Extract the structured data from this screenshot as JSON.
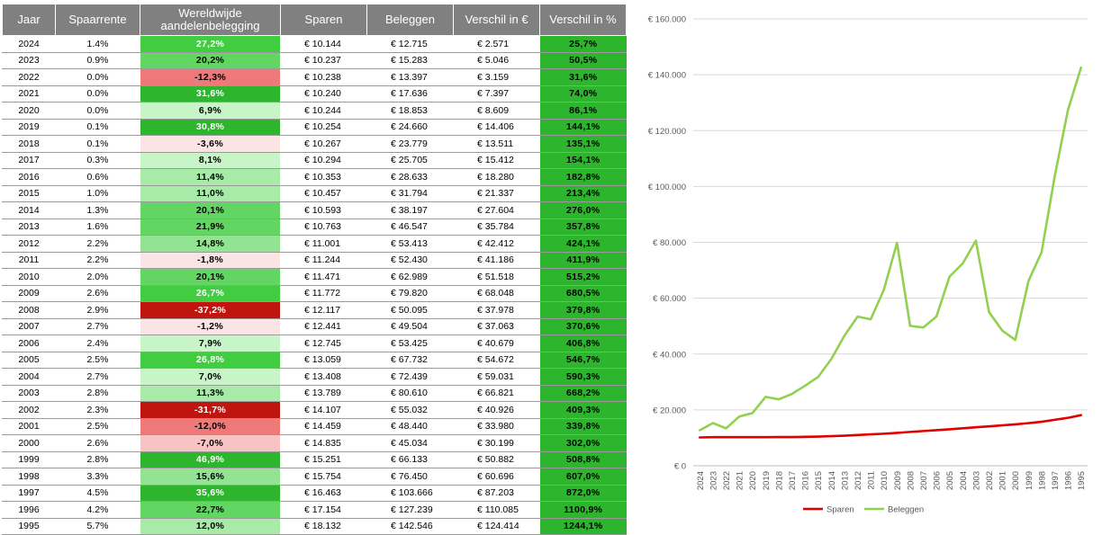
{
  "table": {
    "headers": [
      "Jaar",
      "Spaarrente",
      "Wereldwijde aandelenbelegging",
      "Sparen",
      "Beleggen",
      "Verschil in €",
      "Verschil in %"
    ],
    "rows": [
      {
        "year": "2024",
        "rate": "1.4%",
        "pct": "27,2%",
        "pct_num": 27.2,
        "sparen": "€ 10.144",
        "beleggen": "€ 12.715",
        "diff": "€ 2.571",
        "diffpct": "25,7%"
      },
      {
        "year": "2023",
        "rate": "0.9%",
        "pct": "20,2%",
        "pct_num": 20.2,
        "sparen": "€ 10.237",
        "beleggen": "€ 15.283",
        "diff": "€ 5.046",
        "diffpct": "50,5%"
      },
      {
        "year": "2022",
        "rate": "0.0%",
        "pct": "-12,3%",
        "pct_num": -12.3,
        "sparen": "€ 10.238",
        "beleggen": "€ 13.397",
        "diff": "€ 3.159",
        "diffpct": "31,6%"
      },
      {
        "year": "2021",
        "rate": "0.0%",
        "pct": "31,6%",
        "pct_num": 31.6,
        "sparen": "€ 10.240",
        "beleggen": "€ 17.636",
        "diff": "€ 7.397",
        "diffpct": "74,0%"
      },
      {
        "year": "2020",
        "rate": "0.0%",
        "pct": "6,9%",
        "pct_num": 6.9,
        "sparen": "€ 10.244",
        "beleggen": "€ 18.853",
        "diff": "€ 8.609",
        "diffpct": "86,1%"
      },
      {
        "year": "2019",
        "rate": "0.1%",
        "pct": "30,8%",
        "pct_num": 30.8,
        "sparen": "€ 10.254",
        "beleggen": "€ 24.660",
        "diff": "€ 14.406",
        "diffpct": "144,1%"
      },
      {
        "year": "2018",
        "rate": "0.1%",
        "pct": "-3,6%",
        "pct_num": -3.6,
        "sparen": "€ 10.267",
        "beleggen": "€ 23.779",
        "diff": "€ 13.511",
        "diffpct": "135,1%"
      },
      {
        "year": "2017",
        "rate": "0.3%",
        "pct": "8,1%",
        "pct_num": 8.1,
        "sparen": "€ 10.294",
        "beleggen": "€ 25.705",
        "diff": "€ 15.412",
        "diffpct": "154,1%"
      },
      {
        "year": "2016",
        "rate": "0.6%",
        "pct": "11,4%",
        "pct_num": 11.4,
        "sparen": "€ 10.353",
        "beleggen": "€ 28.633",
        "diff": "€ 18.280",
        "diffpct": "182,8%"
      },
      {
        "year": "2015",
        "rate": "1.0%",
        "pct": "11,0%",
        "pct_num": 11.0,
        "sparen": "€ 10.457",
        "beleggen": "€ 31.794",
        "diff": "€ 21.337",
        "diffpct": "213,4%"
      },
      {
        "year": "2014",
        "rate": "1.3%",
        "pct": "20,1%",
        "pct_num": 20.1,
        "sparen": "€ 10.593",
        "beleggen": "€ 38.197",
        "diff": "€ 27.604",
        "diffpct": "276,0%"
      },
      {
        "year": "2013",
        "rate": "1.6%",
        "pct": "21,9%",
        "pct_num": 21.9,
        "sparen": "€ 10.763",
        "beleggen": "€ 46.547",
        "diff": "€ 35.784",
        "diffpct": "357,8%"
      },
      {
        "year": "2012",
        "rate": "2.2%",
        "pct": "14,8%",
        "pct_num": 14.8,
        "sparen": "€ 11.001",
        "beleggen": "€ 53.413",
        "diff": "€ 42.412",
        "diffpct": "424,1%"
      },
      {
        "year": "2011",
        "rate": "2.2%",
        "pct": "-1,8%",
        "pct_num": -1.8,
        "sparen": "€ 11.244",
        "beleggen": "€ 52.430",
        "diff": "€ 41.186",
        "diffpct": "411,9%"
      },
      {
        "year": "2010",
        "rate": "2.0%",
        "pct": "20,1%",
        "pct_num": 20.1,
        "sparen": "€ 11.471",
        "beleggen": "€ 62.989",
        "diff": "€ 51.518",
        "diffpct": "515,2%"
      },
      {
        "year": "2009",
        "rate": "2.6%",
        "pct": "26,7%",
        "pct_num": 26.7,
        "sparen": "€ 11.772",
        "beleggen": "€ 79.820",
        "diff": "€ 68.048",
        "diffpct": "680,5%"
      },
      {
        "year": "2008",
        "rate": "2.9%",
        "pct": "-37,2%",
        "pct_num": -37.2,
        "sparen": "€ 12.117",
        "beleggen": "€ 50.095",
        "diff": "€ 37.978",
        "diffpct": "379,8%"
      },
      {
        "year": "2007",
        "rate": "2.7%",
        "pct": "-1,2%",
        "pct_num": -1.2,
        "sparen": "€ 12.441",
        "beleggen": "€ 49.504",
        "diff": "€ 37.063",
        "diffpct": "370,6%"
      },
      {
        "year": "2006",
        "rate": "2.4%",
        "pct": "7,9%",
        "pct_num": 7.9,
        "sparen": "€ 12.745",
        "beleggen": "€ 53.425",
        "diff": "€ 40.679",
        "diffpct": "406,8%"
      },
      {
        "year": "2005",
        "rate": "2.5%",
        "pct": "26,8%",
        "pct_num": 26.8,
        "sparen": "€ 13.059",
        "beleggen": "€ 67.732",
        "diff": "€ 54.672",
        "diffpct": "546,7%"
      },
      {
        "year": "2004",
        "rate": "2.7%",
        "pct": "7,0%",
        "pct_num": 7.0,
        "sparen": "€ 13.408",
        "beleggen": "€ 72.439",
        "diff": "€ 59.031",
        "diffpct": "590,3%"
      },
      {
        "year": "2003",
        "rate": "2.8%",
        "pct": "11,3%",
        "pct_num": 11.3,
        "sparen": "€ 13.789",
        "beleggen": "€ 80.610",
        "diff": "€ 66.821",
        "diffpct": "668,2%"
      },
      {
        "year": "2002",
        "rate": "2.3%",
        "pct": "-31,7%",
        "pct_num": -31.7,
        "sparen": "€ 14.107",
        "beleggen": "€ 55.032",
        "diff": "€ 40.926",
        "diffpct": "409,3%"
      },
      {
        "year": "2001",
        "rate": "2.5%",
        "pct": "-12,0%",
        "pct_num": -12.0,
        "sparen": "€ 14.459",
        "beleggen": "€ 48.440",
        "diff": "€ 33.980",
        "diffpct": "339,8%"
      },
      {
        "year": "2000",
        "rate": "2.6%",
        "pct": "-7,0%",
        "pct_num": -7.0,
        "sparen": "€ 14.835",
        "beleggen": "€ 45.034",
        "diff": "€ 30.199",
        "diffpct": "302,0%"
      },
      {
        "year": "1999",
        "rate": "2.8%",
        "pct": "46,9%",
        "pct_num": 46.9,
        "sparen": "€ 15.251",
        "beleggen": "€ 66.133",
        "diff": "€ 50.882",
        "diffpct": "508,8%"
      },
      {
        "year": "1998",
        "rate": "3.3%",
        "pct": "15,6%",
        "pct_num": 15.6,
        "sparen": "€ 15.754",
        "beleggen": "€ 76.450",
        "diff": "€ 60.696",
        "diffpct": "607,0%"
      },
      {
        "year": "1997",
        "rate": "4.5%",
        "pct": "35,6%",
        "pct_num": 35.6,
        "sparen": "€ 16.463",
        "beleggen": "€ 103.666",
        "diff": "€ 87.203",
        "diffpct": "872,0%"
      },
      {
        "year": "1996",
        "rate": "4.2%",
        "pct": "22,7%",
        "pct_num": 22.7,
        "sparen": "€ 17.154",
        "beleggen": "€ 127.239",
        "diff": "€ 110.085",
        "diffpct": "1100,9%"
      },
      {
        "year": "1995",
        "rate": "5.7%",
        "pct": "12,0%",
        "pct_num": 12.0,
        "sparen": "€ 18.132",
        "beleggen": "€ 142.546",
        "diff": "€ 124.414",
        "diffpct": "1244,1%"
      }
    ]
  },
  "chart_data": {
    "type": "line",
    "title": "",
    "xlabel": "",
    "ylabel": "",
    "x": [
      "2024",
      "2023",
      "2022",
      "2021",
      "2020",
      "2019",
      "2018",
      "2017",
      "2016",
      "2015",
      "2014",
      "2013",
      "2012",
      "2011",
      "2010",
      "2009",
      "2008",
      "2007",
      "2006",
      "2005",
      "2004",
      "2003",
      "2002",
      "2001",
      "2000",
      "1999",
      "1998",
      "1997",
      "1996",
      "1995"
    ],
    "ylim": [
      0,
      160000
    ],
    "y_ticks": [
      0,
      20000,
      40000,
      60000,
      80000,
      100000,
      120000,
      140000,
      160000
    ],
    "y_tick_labels": [
      "€ 0",
      "€ 20.000",
      "€ 40.000",
      "€ 60.000",
      "€ 80.000",
      "€ 100.000",
      "€ 120.000",
      "€ 140.000",
      "€ 160.000"
    ],
    "grid": true,
    "legend_position": "bottom",
    "series": [
      {
        "name": "Sparen",
        "color": "#e00000",
        "values": [
          10144,
          10237,
          10238,
          10240,
          10244,
          10254,
          10267,
          10294,
          10353,
          10457,
          10593,
          10763,
          11001,
          11244,
          11471,
          11772,
          12117,
          12441,
          12745,
          13059,
          13408,
          13789,
          14107,
          14459,
          14835,
          15251,
          15754,
          16463,
          17154,
          18132
        ]
      },
      {
        "name": "Beleggen",
        "color": "#92d050",
        "values": [
          12715,
          15283,
          13397,
          17636,
          18853,
          24660,
          23779,
          25705,
          28633,
          31794,
          38197,
          46547,
          53413,
          52430,
          62989,
          79820,
          50095,
          49504,
          53425,
          67732,
          72439,
          80610,
          55032,
          48440,
          45034,
          66133,
          76450,
          103666,
          127239,
          142546
        ]
      }
    ]
  }
}
